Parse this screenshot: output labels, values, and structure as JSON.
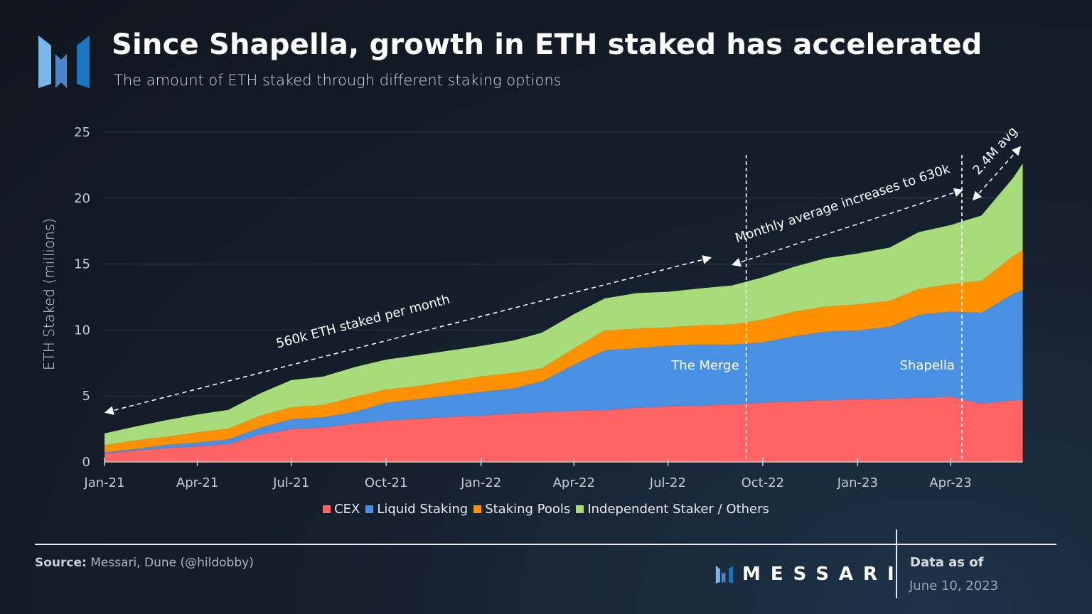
{
  "header": {
    "title": "Since Shapella, growth in ETH staked has accelerated",
    "subtitle": "The amount of ETH staked through different staking options",
    "logo_icon": "messari-logo-icon"
  },
  "footer": {
    "source_label": "Source:",
    "source_text": "Messari, Dune (@hildobby)",
    "brand": "MESSARI",
    "data_as_of_label": "Data as of",
    "data_as_of_date": "June 10, 2023"
  },
  "chart_data": {
    "type": "area",
    "stacked": true,
    "title": "",
    "xlabel": "",
    "ylabel": "ETH Staked (millions)",
    "ylim": [
      0,
      25
    ],
    "yticks": [
      "0",
      "5",
      "10",
      "15",
      "20",
      "25"
    ],
    "grid": true,
    "legend_position": "bottom",
    "x_tick_labels": [
      "Jan-21",
      "Apr-21",
      "Jul-21",
      "Oct-21",
      "Jan-22",
      "Apr-22",
      "Jul-22",
      "Oct-22",
      "Jan-23",
      "Apr-23"
    ],
    "x_tick_dates": [
      "2021-01-01",
      "2021-04-01",
      "2021-07-01",
      "2021-10-01",
      "2022-01-01",
      "2022-04-01",
      "2022-07-01",
      "2022-10-01",
      "2023-01-01",
      "2023-04-01"
    ],
    "x": [
      "2021-01-01",
      "2021-02-01",
      "2021-03-01",
      "2021-04-01",
      "2021-05-01",
      "2021-06-01",
      "2021-07-01",
      "2021-08-01",
      "2021-09-01",
      "2021-10-01",
      "2021-11-01",
      "2021-12-01",
      "2022-01-01",
      "2022-02-01",
      "2022-03-01",
      "2022-04-01",
      "2022-05-01",
      "2022-06-01",
      "2022-07-01",
      "2022-08-01",
      "2022-09-01",
      "2022-10-01",
      "2022-11-01",
      "2022-12-01",
      "2023-01-01",
      "2023-02-01",
      "2023-03-01",
      "2023-04-01",
      "2023-05-01",
      "2023-06-01",
      "2023-06-10"
    ],
    "series": [
      {
        "name": "CEX",
        "color": "#ff6363",
        "values": [
          0.62,
          0.86,
          1.04,
          1.17,
          1.35,
          2.07,
          2.48,
          2.6,
          2.91,
          3.12,
          3.27,
          3.41,
          3.5,
          3.65,
          3.77,
          3.86,
          3.93,
          4.1,
          4.2,
          4.26,
          4.34,
          4.49,
          4.58,
          4.67,
          4.76,
          4.81,
          4.85,
          4.94,
          4.4,
          4.67,
          4.71
        ]
      },
      {
        "name": "Liquid Staking",
        "color": "#4a90e2",
        "values": [
          0.1,
          0.13,
          0.25,
          0.3,
          0.36,
          0.53,
          0.75,
          0.78,
          0.89,
          1.37,
          1.49,
          1.62,
          1.8,
          1.92,
          2.33,
          3.51,
          4.53,
          4.52,
          4.6,
          4.64,
          4.55,
          4.58,
          4.94,
          5.21,
          5.21,
          5.43,
          6.29,
          6.46,
          6.91,
          8.08,
          8.31
        ]
      },
      {
        "name": "Staking Pools",
        "color": "#ff9100",
        "values": [
          0.54,
          0.66,
          0.6,
          0.77,
          0.8,
          0.9,
          0.9,
          0.93,
          1.14,
          0.99,
          0.99,
          1.08,
          1.17,
          1.17,
          1.0,
          1.23,
          1.51,
          1.48,
          1.4,
          1.45,
          1.53,
          1.71,
          1.88,
          1.89,
          1.97,
          1.97,
          1.97,
          2.07,
          2.43,
          2.87,
          3.05
        ]
      },
      {
        "name": "Independent Staker / Others",
        "color": "#a8db7a",
        "values": [
          0.9,
          1.05,
          1.26,
          1.36,
          1.44,
          1.7,
          2.07,
          2.16,
          2.26,
          2.28,
          2.35,
          2.33,
          2.33,
          2.46,
          2.7,
          2.6,
          2.43,
          2.7,
          2.7,
          2.8,
          2.96,
          3.22,
          3.41,
          3.67,
          3.86,
          4.04,
          4.31,
          4.49,
          4.94,
          5.94,
          6.56
        ]
      }
    ],
    "events": [
      {
        "label": "The Merge",
        "date": "2022-09-15"
      },
      {
        "label": "Shapella",
        "date": "2023-04-12"
      }
    ],
    "annotations": [
      {
        "text": "560k ETH staked per month",
        "from": "2021-01-01",
        "to": "2022-09-15"
      },
      {
        "text": "Monthly average increases to 630k",
        "from": "2022-09-15",
        "to": "2023-04-12"
      },
      {
        "text": "2.4M avg",
        "from": "2023-04-12",
        "to": "2023-06-10"
      }
    ]
  }
}
